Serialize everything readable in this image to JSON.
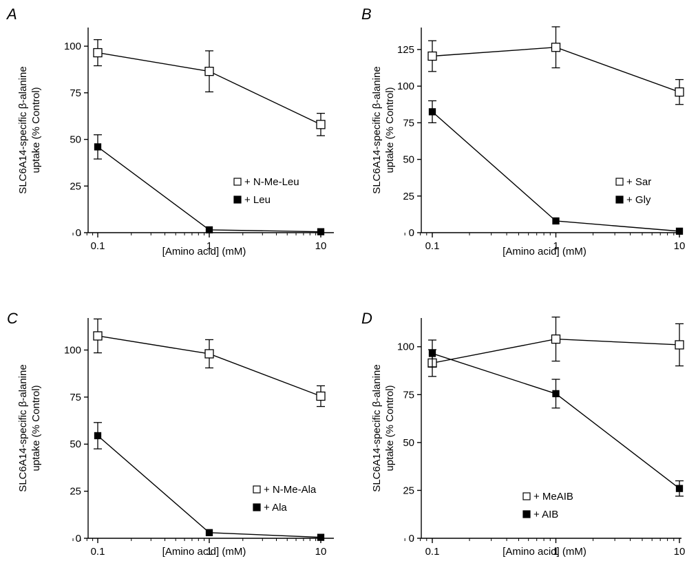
{
  "chart_data": [
    {
      "panel": "A",
      "type": "line",
      "xlabel": "[Amino acid] (mM)",
      "ylabel": "SLC6A14-specific β-alanine uptake (% Control)",
      "ylabel_lines": [
        "SLC6A14-specific β-alanine",
        "uptake (% Control)"
      ],
      "xscale": "log",
      "xlim": [
        0.05,
        10
      ],
      "ylim": [
        0,
        110
      ],
      "x": [
        0.1,
        1,
        10
      ],
      "x_tick_labels": [
        "0.1",
        "1",
        "10"
      ],
      "y_ticks": [
        0,
        25,
        50,
        75,
        100
      ],
      "legend_position": "center-right",
      "series": [
        {
          "name": "+ N-Me-Leu",
          "marker": "open-square",
          "values": [
            96.5,
            86.5,
            58
          ],
          "errors": [
            7,
            11,
            6
          ]
        },
        {
          "name": "+ Leu",
          "marker": "filled-square",
          "values": [
            46,
            1.5,
            0.5
          ],
          "errors": [
            6.5,
            0,
            0
          ]
        }
      ]
    },
    {
      "panel": "B",
      "type": "line",
      "xlabel": "[Amino acid] (mM)",
      "ylabel": "SLC6A14-specific β-alanine uptake (% Control)",
      "ylabel_lines": [
        "SLC6A14-specific β-alanine",
        "uptake (% Control)"
      ],
      "xscale": "log",
      "xlim": [
        0.05,
        10
      ],
      "ylim": [
        0,
        140
      ],
      "x": [
        0.1,
        1,
        10
      ],
      "x_tick_labels": [
        "0.1",
        "1",
        "10"
      ],
      "y_ticks": [
        0,
        25,
        50,
        75,
        100,
        125
      ],
      "legend_position": "center-right",
      "series": [
        {
          "name": "+ Sar",
          "marker": "open-square",
          "values": [
            120.5,
            126.5,
            96
          ],
          "errors": [
            10.5,
            14,
            8.5
          ]
        },
        {
          "name": "+ Gly",
          "marker": "filled-square",
          "values": [
            82.5,
            8,
            1
          ],
          "errors": [
            7.5,
            0,
            0
          ]
        }
      ]
    },
    {
      "panel": "C",
      "type": "line",
      "xlabel": "[Amino acid] (mM)",
      "ylabel": "SLC6A14-specific β-alanine uptake (% Control)",
      "ylabel_lines": [
        "SLC6A14-specific β-alanine",
        "uptake (% Control)"
      ],
      "xscale": "log",
      "xlim": [
        0.05,
        10
      ],
      "ylim": [
        0,
        117
      ],
      "x": [
        0.1,
        1,
        10
      ],
      "x_tick_labels": [
        "0.1",
        "1",
        "10"
      ],
      "y_ticks": [
        0,
        25,
        50,
        75,
        100
      ],
      "legend_position": "center-right",
      "series": [
        {
          "name": "+ N-Me-Ala",
          "marker": "open-square",
          "values": [
            107.5,
            98,
            75.5
          ],
          "errors": [
            9,
            7.5,
            5.5
          ]
        },
        {
          "name": "+ Ala",
          "marker": "filled-square",
          "values": [
            54.5,
            3,
            0.5
          ],
          "errors": [
            7,
            0,
            0
          ]
        }
      ]
    },
    {
      "panel": "D",
      "type": "line",
      "xlabel": "[Amino acid] (mM)",
      "ylabel": "SLC6A14-specific β-alanine uptake (% Control)",
      "ylabel_lines": [
        "SLC6A14-specific β-alanine",
        "uptake (% Control)"
      ],
      "xscale": "log",
      "xlim": [
        0.05,
        10
      ],
      "ylim": [
        0,
        115
      ],
      "x": [
        0.1,
        1,
        10
      ],
      "x_tick_labels": [
        "0.1",
        "1",
        "10"
      ],
      "y_ticks": [
        0,
        25,
        50,
        75,
        100
      ],
      "legend_position": "bottom-center",
      "series": [
        {
          "name": "+ MeAIB",
          "marker": "open-square",
          "values": [
            91.5,
            104,
            101
          ],
          "errors": [
            7,
            11.5,
            11
          ]
        },
        {
          "name": "+ AIB",
          "marker": "filled-square",
          "values": [
            96.5,
            75.5,
            26
          ],
          "errors": [
            7,
            7.5,
            4
          ]
        }
      ]
    }
  ]
}
